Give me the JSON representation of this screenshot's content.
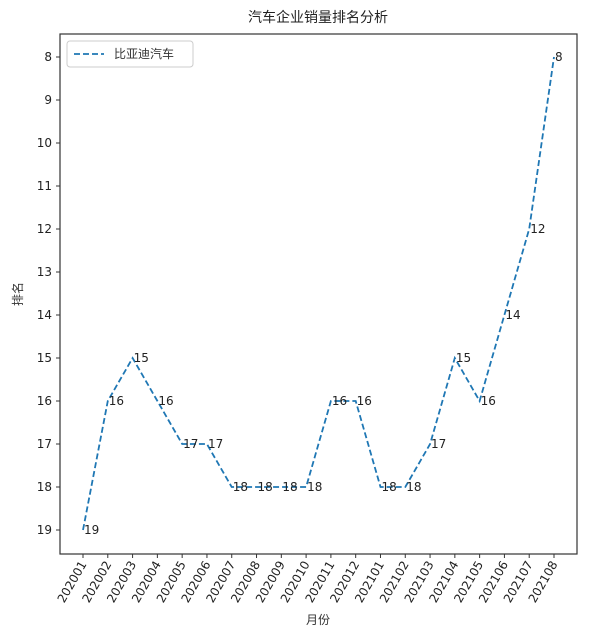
{
  "chart_data": {
    "type": "line",
    "title": "汽车企业销量排名分析",
    "xlabel": "月份",
    "ylabel": "排名",
    "categories": [
      "202001",
      "202002",
      "202003",
      "202004",
      "202005",
      "202006",
      "202007",
      "202008",
      "202009",
      "202010",
      "202011",
      "202012",
      "202101",
      "202102",
      "202103",
      "202104",
      "202105",
      "202106",
      "202107",
      "202108"
    ],
    "series": [
      {
        "name": "比亚迪汽车",
        "values": [
          19,
          16,
          15,
          16,
          17,
          17,
          18,
          18,
          18,
          18,
          16,
          16,
          18,
          18,
          17,
          15,
          16,
          14,
          12,
          8
        ],
        "color": "#1f77b4",
        "linestyle": "dashed"
      }
    ],
    "yticks": [
      8,
      9,
      10,
      11,
      12,
      13,
      14,
      15,
      16,
      17,
      18,
      19
    ],
    "ylim": [
      19.55,
      7.55
    ],
    "y_inverted": true,
    "grid": false,
    "legend_position": "upper left",
    "xtick_rotation": 60,
    "data_labels": true
  }
}
